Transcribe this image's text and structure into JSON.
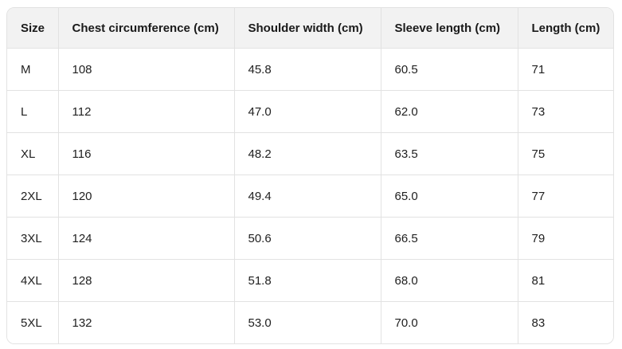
{
  "table": {
    "columns": [
      "Size",
      "Chest circumference (cm)",
      "Shoulder width (cm)",
      "Sleeve length (cm)",
      "Length (cm)"
    ],
    "rows": [
      [
        "M",
        "108",
        "45.8",
        "60.5",
        "71"
      ],
      [
        "L",
        "112",
        "47.0",
        "62.0",
        "73"
      ],
      [
        "XL",
        "116",
        "48.2",
        "63.5",
        "75"
      ],
      [
        "2XL",
        "120",
        "49.4",
        "65.0",
        "77"
      ],
      [
        "3XL",
        "124",
        "50.6",
        "66.5",
        "79"
      ],
      [
        "4XL",
        "128",
        "51.8",
        "68.0",
        "81"
      ],
      [
        "5XL",
        "132",
        "53.0",
        "70.0",
        "83"
      ]
    ]
  },
  "colors": {
    "header_background": "#f2f2f2",
    "border": "#e2e2e2",
    "header_text": "#1a1a1a",
    "body_text": "#212121",
    "body_background": "#ffffff"
  }
}
